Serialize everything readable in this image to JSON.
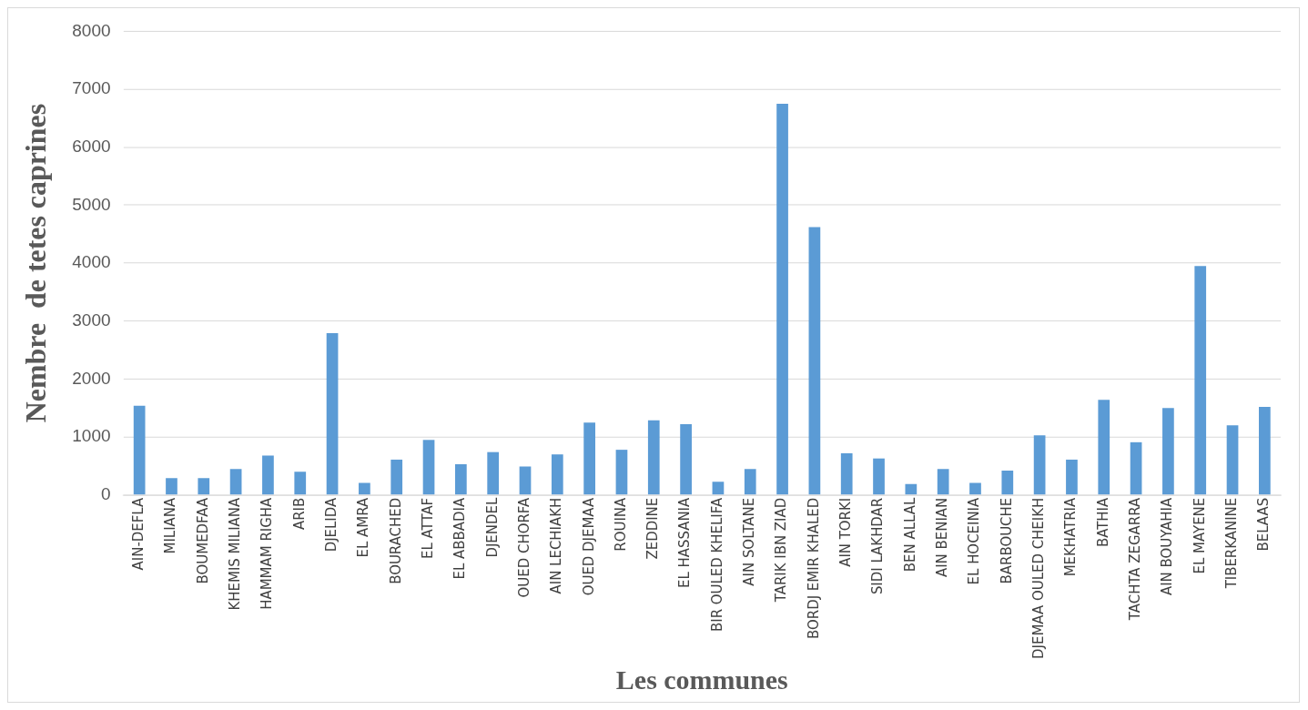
{
  "chart_data": {
    "type": "bar",
    "xlabel": "Les communes",
    "ylabel": "Nembre  de tetes caprines",
    "categories": [
      "AIN-DEFLA",
      "MILIANA",
      "BOUMEDFAA",
      "KHEMIS MILIANA",
      "HAMMAM RIGHA",
      "ARIB",
      "DJELIDA",
      "EL AMRA",
      "BOURACHED",
      "EL ATTAF",
      "EL ABBADIA",
      "DJENDEL",
      "OUED CHORFA",
      "AIN LECHIAKH",
      "OUED DJEMAA",
      "ROUINA",
      "ZEDDINE",
      "EL HASSANIA",
      "BIR OULED KHELIFA",
      "AIN SOLTANE",
      "TARIK IBN ZIAD",
      "BORDJ EMIR KHALED",
      "AIN TORKI",
      "SIDI LAKHDAR",
      "BEN ALLAL",
      "AIN BENIAN",
      "EL HOCEINIA",
      "BARBOUCHE",
      "DJEMAA OULED CHEIKH",
      "MEKHATRIA",
      "BATHIA",
      "TACHTA ZEGARRA",
      "AIN BOUYAHIA",
      "EL MAYENE",
      "TIBERKANINE",
      "BELAAS"
    ],
    "values": [
      1540,
      290,
      290,
      450,
      680,
      400,
      2790,
      210,
      610,
      950,
      530,
      740,
      490,
      700,
      1250,
      780,
      1290,
      1220,
      230,
      450,
      6750,
      4620,
      720,
      630,
      190,
      450,
      210,
      420,
      1030,
      610,
      1640,
      910,
      1500,
      3950,
      1200,
      1520
    ],
    "color": "#5b9bd5",
    "ylim": [
      0,
      8000
    ],
    "yticks": [
      0,
      1000,
      2000,
      3000,
      4000,
      5000,
      6000,
      7000,
      8000
    ],
    "grid": "y"
  }
}
